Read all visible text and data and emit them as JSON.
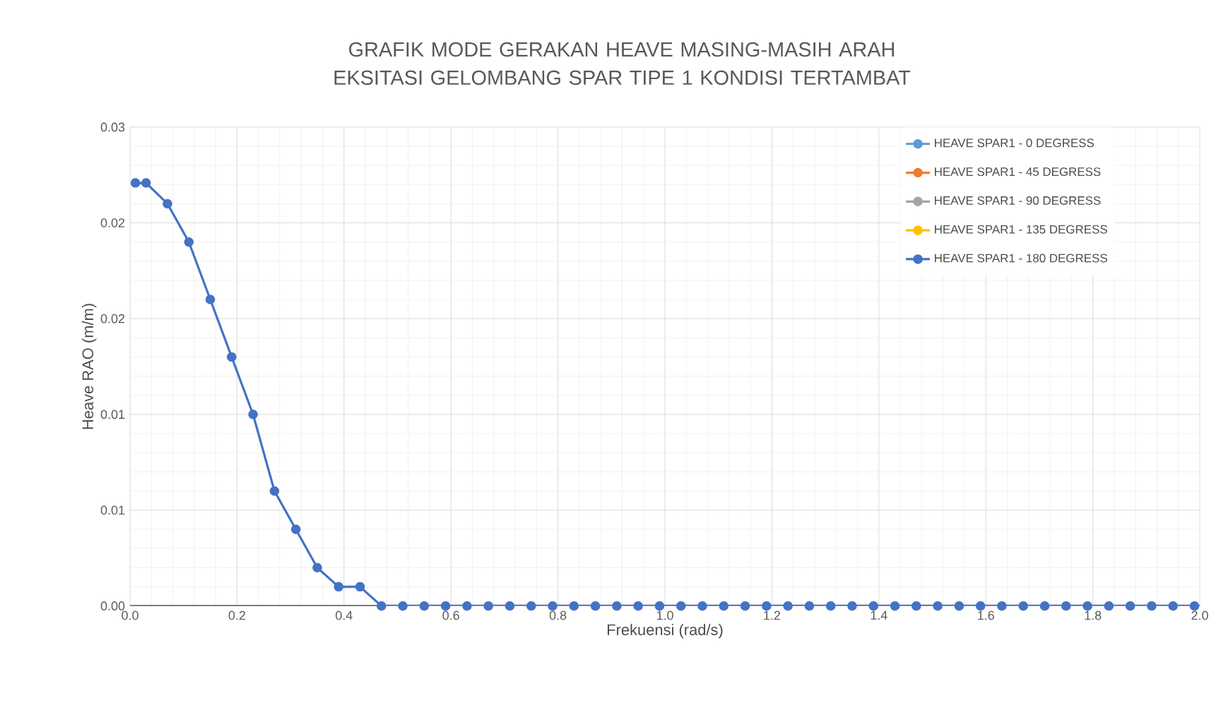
{
  "chart_data": {
    "type": "line",
    "title": "GRAFIK MODE GERAKAN HEAVE MASING-MASIH ARAH EKSITASI GELOMBANG SPAR TIPE 1 KONDISI TERTAMBAT",
    "xlabel": "Frekuensi (rad/s)",
    "ylabel": "Heave RAO (m/m)",
    "x": [
      0.01,
      0.03,
      0.07,
      0.11,
      0.15,
      0.19,
      0.23,
      0.27,
      0.31,
      0.35,
      0.39,
      0.43,
      0.47,
      0.51,
      0.55,
      0.59,
      0.63,
      0.67,
      0.71,
      0.75,
      0.79,
      0.83,
      0.87,
      0.91,
      0.95,
      0.99,
      1.03,
      1.07,
      1.11,
      1.15,
      1.19,
      1.23,
      1.27,
      1.31,
      1.35,
      1.39,
      1.43,
      1.47,
      1.51,
      1.55,
      1.59,
      1.63,
      1.67,
      1.71,
      1.75,
      1.79,
      1.83,
      1.87,
      1.91,
      1.95,
      1.99
    ],
    "series": [
      {
        "name": "HEAVE SPAR1 - 0 DEGRESS",
        "color": "#5b9bd5",
        "values": [
          null,
          null,
          null,
          null,
          null,
          null,
          null,
          null,
          null,
          null,
          null,
          null,
          null,
          null,
          null,
          null,
          null,
          null,
          null,
          null,
          null,
          null,
          null,
          null,
          null,
          null,
          null,
          null,
          null,
          null,
          null,
          null,
          null,
          null,
          null,
          null,
          null,
          null,
          null,
          null,
          null,
          null,
          null,
          null,
          null,
          null,
          null,
          null,
          null,
          null,
          null
        ]
      },
      {
        "name": "HEAVE SPAR1 - 45 DEGRESS",
        "color": "#ed7d31",
        "values": [
          null,
          null,
          null,
          null,
          null,
          null,
          null,
          null,
          null,
          null,
          null,
          null,
          null,
          null,
          null,
          null,
          null,
          null,
          null,
          null,
          null,
          null,
          null,
          null,
          null,
          null,
          null,
          null,
          null,
          null,
          null,
          null,
          null,
          null,
          null,
          null,
          null,
          null,
          null,
          null,
          null,
          null,
          null,
          null,
          null,
          null,
          null,
          null,
          null,
          null,
          null
        ]
      },
      {
        "name": "HEAVE SPAR1 - 90 DEGRESS",
        "color": "#a5a5a5",
        "values": [
          null,
          null,
          null,
          null,
          null,
          null,
          null,
          null,
          null,
          null,
          null,
          null,
          null,
          null,
          null,
          null,
          null,
          null,
          null,
          null,
          null,
          null,
          null,
          null,
          null,
          null,
          null,
          null,
          null,
          null,
          null,
          null,
          null,
          null,
          null,
          null,
          null,
          null,
          null,
          null,
          null,
          null,
          null,
          null,
          null,
          null,
          null,
          null,
          null,
          null,
          null
        ]
      },
      {
        "name": "HEAVE SPAR1 - 135 DEGRESS",
        "color": "#ffc000",
        "values": [
          null,
          null,
          null,
          null,
          null,
          null,
          null,
          null,
          null,
          null,
          null,
          null,
          null,
          null,
          null,
          null,
          null,
          null,
          null,
          null,
          null,
          null,
          null,
          null,
          null,
          null,
          null,
          null,
          null,
          null,
          null,
          null,
          null,
          null,
          null,
          null,
          null,
          null,
          null,
          null,
          null,
          null,
          null,
          null,
          null,
          null,
          null,
          null,
          null,
          null,
          null
        ]
      },
      {
        "name": "HEAVE SPAR1 - 180 DEGRESS",
        "color": "#4472c4",
        "values": [
          0.0265,
          0.0265,
          0.0252,
          0.0228,
          0.0192,
          0.0156,
          0.012,
          0.0072,
          0.0048,
          0.0024,
          0.0012,
          0.0012,
          0,
          0,
          0,
          0,
          0,
          0,
          0,
          0,
          0,
          0,
          0,
          0,
          0,
          0,
          0,
          0,
          0,
          0,
          0,
          0,
          0,
          0,
          0,
          0,
          0,
          0,
          0,
          0,
          0,
          0,
          0,
          0,
          0,
          0,
          0,
          0,
          0,
          0,
          0
        ]
      }
    ],
    "xlim": [
      0,
      2
    ],
    "ylim": [
      0,
      0.03
    ],
    "xticks": [
      {
        "value": 0,
        "label": "0.0"
      },
      0.2,
      0.4,
      0.6,
      0.8,
      {
        "value": 1,
        "label": "1.0"
      },
      1.2,
      1.4,
      1.6,
      1.8,
      {
        "value": 2,
        "label": "2.0"
      }
    ],
    "yticks": [
      {
        "value": 0,
        "label": "0.00"
      },
      {
        "value": 0.006,
        "label": "0.01"
      },
      {
        "value": 0.012,
        "label": "0.01"
      },
      {
        "value": 0.018,
        "label": "0.02"
      },
      {
        "value": 0.024,
        "label": "0.02"
      },
      {
        "value": 0.03,
        "label": "0.03"
      }
    ],
    "grid": true,
    "legend": "top right",
    "marker": "circle",
    "line_style": "solid"
  }
}
